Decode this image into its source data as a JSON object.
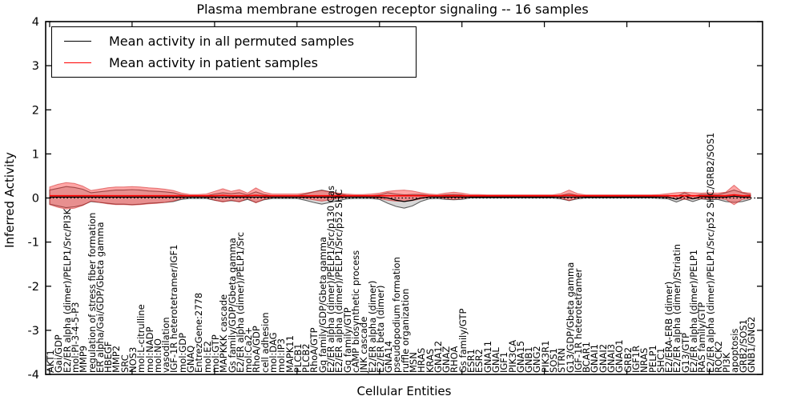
{
  "title": "Plasma membrane estrogen receptor signaling -- 16 samples",
  "legend": [
    {
      "label": "Mean activity in all permuted samples",
      "color": "#000000"
    },
    {
      "label": "Mean activity in patient samples",
      "color": "#ff0000"
    }
  ],
  "axes": {
    "xlabel": "Cellular Entities",
    "ylabel": "Inferred Activity",
    "ylim": [
      -4,
      4
    ],
    "yticks": [
      4,
      3,
      2,
      1,
      0,
      -1,
      -2,
      -3,
      -4
    ],
    "grid": false,
    "legend_position": "upper left"
  },
  "colors": {
    "patient_band": "#ff2a2a",
    "patient_band_edge": "#cc2222",
    "permuted_band": "#b0b0b0",
    "permuted_band_edge": "#222222",
    "zero_line": "#000000"
  },
  "chart_data": {
    "type": "line",
    "title": "Plasma membrane estrogen receptor signaling -- 16 samples",
    "xlabel": "Cellular Entities",
    "ylabel": "Inferred Activity",
    "ylim": [
      -4,
      4
    ],
    "categories": [
      "AKT1",
      "Gai/GDP",
      "E2/ER alpha (dimer)/PELP1/Src/PI3K",
      "mol:PI-3-4-5-P3",
      "MMP9",
      "regulation of stress fiber formation",
      "ER alpha/Gai/GDP/Gbeta gamma",
      "HBEGF",
      "MMP2",
      "SRC",
      "NOS3",
      "mol:L-citrulline",
      "mol:NADP",
      "mol:NO",
      "vasodilation",
      "IGF-1R heterotetramer/IGF1",
      "mol:GDP",
      "GNAQ",
      "EntrezGene:2778",
      "mol:E2",
      "mol:GTP",
      "MAPKKK cascade",
      "Gs family/GDP/Gbeta gamma",
      "E2/ER alpha (dimer)/PELP1/Src",
      "mol:Ca2+",
      "RhoA/GDP",
      "cell adhesion",
      "mol:DAG",
      "mol:IP3",
      "MAPK11",
      "PLCB1",
      "PLCB2",
      "RhoA/GTP",
      "Gq family/GDP/Gbeta gamma",
      "E2/ER alpha (dimer)/PELP1/Src/p130 Cas",
      "E2/ER alpha (dimer)/PELP1/Src/p52 SHC",
      "Gq family/GTP",
      "cAMP biosynthetic process",
      "JNK cascade",
      "E2/ER alpha (dimer)",
      "E2/ER beta (dimer)",
      "GNA14",
      "pseudopodium formation",
      "ruffle organization",
      "MSN",
      "HRAS",
      "KRAS",
      "GNA12",
      "GNAZ",
      "RHOA",
      "Gs family/GTP",
      "ESR1",
      "ESR2",
      "GNA11",
      "GNAL",
      "IGF1",
      "PIK3CA",
      "GNA15",
      "GNB1",
      "GNG2",
      "PIK3R1",
      "SOS1",
      "STRN",
      "G13/GDP/Gbeta gamma",
      "IGF-1R heterotetramer",
      "BCAR1",
      "GNAI1",
      "GNAI2",
      "GNAI3",
      "GNAO1",
      "GRB2",
      "IGF1R",
      "NRAS",
      "PELP1",
      "SHC1",
      "E2/ERA-ERB (dimer)",
      "E2/ER alpha (dimer)/Striatin",
      "G13/GTP",
      "E2/ER alpha (dimer)/PELP1",
      "RAS family/GTP",
      "E2/ER alpha (dimer)/PELP1/Src/p52 SHC/GRB2/SOS1",
      "ROCK2",
      "PI3K",
      "apoptosis",
      "GRB2/SOS1",
      "GNB1/GNG2"
    ],
    "series": [
      {
        "name": "Mean activity in all permuted samples",
        "color": "#000000",
        "style": "solid",
        "values": [
          0.02,
          0.02,
          0.02,
          0.02,
          0.02,
          0.02,
          0.02,
          0.02,
          0.02,
          0.02,
          0.02,
          0.02,
          0.02,
          0.02,
          0.02,
          0.02,
          0.02,
          0.02,
          0.02,
          0.02,
          0.02,
          0.02,
          0.02,
          0.02,
          0.02,
          0.02,
          0.02,
          0.02,
          0.02,
          0.02,
          0.02,
          0.02,
          0.02,
          0.02,
          0.02,
          0.02,
          0.02,
          0.02,
          0.02,
          0.02,
          0.02,
          0.0,
          -0.05,
          -0.08,
          -0.05,
          0.0,
          0.02,
          0.02,
          0.02,
          0.02,
          0.02,
          0.02,
          0.02,
          0.02,
          0.02,
          0.02,
          0.02,
          0.02,
          0.02,
          0.02,
          0.02,
          0.02,
          0.02,
          0.02,
          0.02,
          0.02,
          0.02,
          0.02,
          0.02,
          0.02,
          0.02,
          0.02,
          0.02,
          0.02,
          0.02,
          0.02,
          -0.03,
          0.05,
          -0.02,
          0.03,
          0.02,
          0.02,
          0.02,
          0.04,
          0.02,
          0.02
        ]
      },
      {
        "name": "Mean activity in patient samples",
        "color": "#ff0000",
        "style": "solid",
        "values": [
          0.05,
          0.05,
          0.05,
          0.05,
          0.05,
          0.05,
          0.05,
          0.05,
          0.05,
          0.05,
          0.05,
          0.05,
          0.05,
          0.05,
          0.05,
          0.05,
          0.05,
          0.05,
          0.05,
          0.05,
          0.05,
          0.06,
          0.05,
          0.05,
          0.05,
          0.06,
          0.05,
          0.05,
          0.05,
          0.05,
          0.05,
          0.05,
          0.05,
          0.05,
          0.05,
          0.05,
          0.05,
          0.05,
          0.05,
          0.05,
          0.05,
          0.05,
          0.05,
          0.05,
          0.05,
          0.05,
          0.05,
          0.05,
          0.05,
          0.05,
          0.05,
          0.05,
          0.05,
          0.05,
          0.05,
          0.05,
          0.05,
          0.05,
          0.05,
          0.05,
          0.05,
          0.05,
          0.05,
          0.06,
          0.05,
          0.05,
          0.05,
          0.05,
          0.05,
          0.05,
          0.05,
          0.05,
          0.05,
          0.05,
          0.05,
          0.05,
          0.05,
          0.05,
          0.05,
          0.05,
          0.05,
          0.05,
          0.05,
          0.07,
          0.05,
          0.05
        ]
      }
    ],
    "permuted_band_halfwidth": [
      0.16,
      0.2,
      0.24,
      0.22,
      0.18,
      0.1,
      0.12,
      0.14,
      0.16,
      0.16,
      0.17,
      0.16,
      0.14,
      0.13,
      0.12,
      0.1,
      0.05,
      0.03,
      0.03,
      0.03,
      0.07,
      0.1,
      0.08,
      0.1,
      0.05,
      0.12,
      0.06,
      0.03,
      0.03,
      0.03,
      0.03,
      0.07,
      0.12,
      0.16,
      0.12,
      0.08,
      0.04,
      0.03,
      0.03,
      0.03,
      0.05,
      0.12,
      0.14,
      0.15,
      0.13,
      0.08,
      0.04,
      0.03,
      0.05,
      0.06,
      0.05,
      0.02,
      0.02,
      0.02,
      0.02,
      0.02,
      0.02,
      0.02,
      0.02,
      0.02,
      0.02,
      0.02,
      0.04,
      0.08,
      0.04,
      0.02,
      0.02,
      0.02,
      0.02,
      0.02,
      0.02,
      0.02,
      0.02,
      0.02,
      0.03,
      0.04,
      0.06,
      0.07,
      0.06,
      0.05,
      0.06,
      0.05,
      0.1,
      0.14,
      0.1,
      0.05
    ],
    "patient_band_halfwidth": [
      0.2,
      0.26,
      0.3,
      0.28,
      0.22,
      0.12,
      0.15,
      0.18,
      0.2,
      0.2,
      0.21,
      0.2,
      0.18,
      0.17,
      0.15,
      0.12,
      0.06,
      0.03,
      0.03,
      0.04,
      0.1,
      0.15,
      0.1,
      0.14,
      0.06,
      0.17,
      0.08,
      0.04,
      0.04,
      0.04,
      0.04,
      0.06,
      0.09,
      0.12,
      0.09,
      0.06,
      0.04,
      0.03,
      0.03,
      0.04,
      0.06,
      0.1,
      0.12,
      0.13,
      0.11,
      0.07,
      0.04,
      0.03,
      0.06,
      0.08,
      0.06,
      0.03,
      0.03,
      0.02,
      0.02,
      0.02,
      0.02,
      0.02,
      0.02,
      0.02,
      0.02,
      0.02,
      0.05,
      0.12,
      0.05,
      0.02,
      0.02,
      0.02,
      0.02,
      0.02,
      0.02,
      0.02,
      0.02,
      0.02,
      0.03,
      0.05,
      0.07,
      0.08,
      0.07,
      0.06,
      0.07,
      0.06,
      0.08,
      0.22,
      0.08,
      0.06
    ],
    "zero_line": {
      "value": 0,
      "style": "dotted",
      "color": "#000000"
    }
  }
}
